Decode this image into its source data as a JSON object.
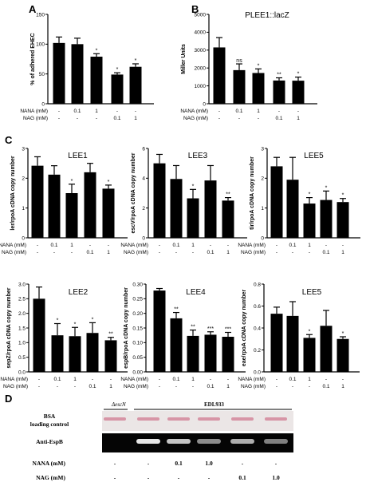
{
  "panel_letters": [
    "A",
    "B",
    "C",
    "D"
  ],
  "conditions": {
    "nana_label": "NANA (mM)",
    "nag_label": "NAG  (mM)",
    "nana_values": [
      "-",
      "0.1",
      "1",
      "-",
      "-"
    ],
    "nag_values": [
      "-",
      "-",
      "-",
      "0.1",
      "1"
    ]
  },
  "chart_data": [
    {
      "id": "A",
      "type": "bar",
      "title": "",
      "ylabel": "% of adhered EHEC",
      "ylim": [
        0,
        150
      ],
      "yticks": [
        "0",
        "50",
        "100",
        "150"
      ],
      "values": [
        102,
        100,
        79,
        49,
        62
      ],
      "errors": [
        10,
        10,
        5,
        3,
        5
      ],
      "annotations": [
        "",
        "",
        "*",
        "*",
        "*"
      ]
    },
    {
      "id": "B",
      "type": "bar",
      "title": "PLEE1::lacZ",
      "ylabel": "Miller Units",
      "ylim": [
        0,
        5000
      ],
      "yticks": [
        "0",
        "1000",
        "2000",
        "3000",
        "4000",
        "5000"
      ],
      "values": [
        3150,
        1880,
        1720,
        1300,
        1290
      ],
      "errors": [
        550,
        350,
        230,
        150,
        200
      ],
      "annotations": [
        "",
        "ns",
        "*",
        "**",
        "*"
      ]
    },
    {
      "id": "C-LEE1",
      "type": "bar",
      "title": "LEE1",
      "ylabel": "ler/rpoA cDNA copy number",
      "ylim": [
        0,
        3.0
      ],
      "yticks": [
        "0",
        "1",
        "2",
        "3"
      ],
      "values": [
        2.42,
        2.12,
        1.5,
        2.2,
        1.65
      ],
      "errors": [
        0.3,
        0.3,
        0.3,
        0.3,
        0.12
      ],
      "annotations": [
        "",
        "",
        "*",
        "",
        "*"
      ]
    },
    {
      "id": "C-LEE3",
      "type": "bar",
      "title": "LEE3",
      "ylabel": "escV/rpoA cDNA copy number",
      "ylim": [
        0,
        6
      ],
      "yticks": [
        "0",
        "2",
        "4",
        "6"
      ],
      "values": [
        5.0,
        3.95,
        2.65,
        3.85,
        2.5
      ],
      "errors": [
        0.6,
        0.9,
        0.6,
        1.0,
        0.2
      ],
      "annotations": [
        "",
        "",
        "*",
        "",
        "**"
      ]
    },
    {
      "id": "C-LEE5a",
      "type": "bar",
      "title": "LEE5",
      "ylabel": "tir/rpoA cDNA copy number",
      "ylim": [
        0,
        3
      ],
      "yticks": [
        "0",
        "1",
        "2",
        "3"
      ],
      "values": [
        2.4,
        1.95,
        1.15,
        1.27,
        1.2
      ],
      "errors": [
        0.3,
        0.75,
        0.2,
        0.3,
        0.12
      ],
      "annotations": [
        "",
        "",
        "*",
        "*",
        "*"
      ]
    },
    {
      "id": "C-LEE2",
      "type": "bar",
      "title": "LEE2",
      "ylabel": "sepZ/rpoA cDNA copy number",
      "ylim": [
        0,
        3.0
      ],
      "yticks": [
        "0.0",
        "0.5",
        "1.0",
        "1.5",
        "2.0",
        "2.5",
        "3.0"
      ],
      "values": [
        2.5,
        1.25,
        1.22,
        1.33,
        1.08
      ],
      "errors": [
        0.4,
        0.4,
        0.3,
        0.35,
        0.1
      ],
      "annotations": [
        "",
        "*",
        "*",
        "*",
        "**"
      ]
    },
    {
      "id": "C-LEE4",
      "type": "bar",
      "title": "LEE4",
      "ylabel": "espB/rpoA cDNA copy number",
      "ylim": [
        0,
        0.3
      ],
      "yticks": [
        "0.00",
        "0.05",
        "0.10",
        "0.15",
        "0.20",
        "0.25",
        "0.30"
      ],
      "values": [
        0.278,
        0.183,
        0.123,
        0.127,
        0.12
      ],
      "errors": [
        0.007,
        0.02,
        0.02,
        0.01,
        0.015
      ],
      "annotations": [
        "",
        "**",
        "**",
        "***",
        "***"
      ]
    },
    {
      "id": "C-LEE5b",
      "type": "bar",
      "title": "LEE5",
      "ylabel": "eae/rpoA cDNA copy number",
      "ylim": [
        0,
        0.8
      ],
      "yticks": [
        "0.0",
        "0.2",
        "0.4",
        "0.6",
        "0.8"
      ],
      "values": [
        0.53,
        0.51,
        0.31,
        0.42,
        0.3
      ],
      "errors": [
        0.06,
        0.13,
        0.03,
        0.14,
        0.02
      ],
      "annotations": [
        "",
        "",
        "*",
        "",
        "*"
      ]
    }
  ],
  "blot": {
    "strain_mutant": "ΔescN",
    "strain_wt": "EDL933",
    "row1_label": "BSA\nloading control",
    "row2_label": "Anti-EspB",
    "nana_label": "NANA (mM)",
    "nag_label": "NAG (mM)",
    "nana_values": [
      "-",
      "-",
      "0.1",
      "1.0",
      "-",
      "-"
    ],
    "nag_values": [
      "-",
      "-",
      "-",
      "-",
      "0.1",
      "1.0"
    ],
    "band_intensity": [
      0,
      1.0,
      0.85,
      0.6,
      0.75,
      0.55
    ],
    "colors": {
      "bsa_band": "#d4869a",
      "bsa_bg": "#ebe6e6",
      "blot_bg": "#050505",
      "band": "#e6e6e6"
    }
  }
}
